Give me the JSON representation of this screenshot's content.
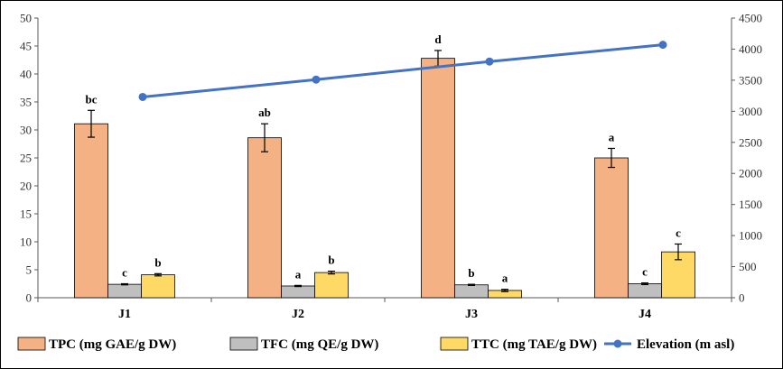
{
  "chart_data": {
    "type": "bar",
    "categories": [
      "J1",
      "J2",
      "J3",
      "J4"
    ],
    "series": [
      {
        "name": "TPC (mg GAE/g DW)",
        "axis": "left",
        "color": "#F4B183",
        "values": [
          31.1,
          28.6,
          42.8,
          25.0
        ],
        "errors": [
          2.4,
          2.5,
          1.4,
          1.7
        ],
        "labels": [
          "bc",
          "ab",
          "d",
          "a"
        ]
      },
      {
        "name": "TFC (mg QE/g DW)",
        "axis": "left",
        "color": "#BFBFBF",
        "values": [
          2.4,
          2.1,
          2.3,
          2.5
        ],
        "errors": [
          0.1,
          0.1,
          0.1,
          0.15
        ],
        "labels": [
          "c",
          "a",
          "b",
          "c"
        ]
      },
      {
        "name": "TTC (mg TAE/g DW)",
        "axis": "left",
        "color": "#FFD966",
        "values": [
          4.1,
          4.5,
          1.3,
          8.2
        ],
        "errors": [
          0.2,
          0.25,
          0.2,
          1.4
        ],
        "labels": [
          "b",
          "b",
          "a",
          "c"
        ]
      },
      {
        "name": "Elevation (m asl)",
        "axis": "right",
        "type": "line",
        "color": "#4472C4",
        "values": [
          3230,
          3510,
          3800,
          4070
        ]
      }
    ],
    "ylim": [
      0,
      50
    ],
    "y_ticks": [
      0,
      5,
      10,
      15,
      20,
      25,
      30,
      35,
      40,
      45,
      50
    ],
    "y2lim": [
      0,
      4500
    ],
    "y2_ticks": [
      0,
      500,
      1000,
      1500,
      2000,
      2500,
      3000,
      3500,
      4000,
      4500
    ],
    "grid": false,
    "legend": "bottom"
  }
}
